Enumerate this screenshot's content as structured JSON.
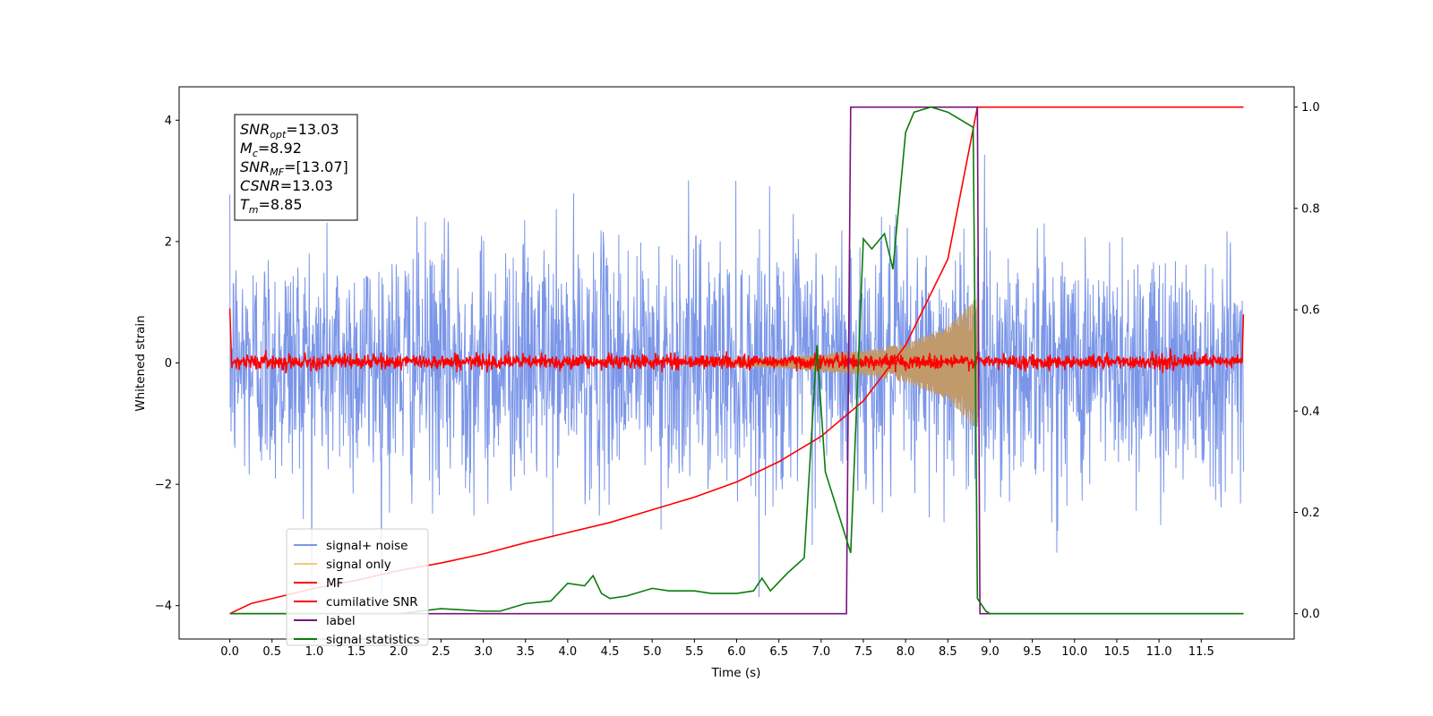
{
  "chart_data": {
    "type": "line",
    "xlabel": "Time (s)",
    "ylabel": "Whitened strain",
    "xlim": [
      -0.6,
      12.6
    ],
    "ylim_left": [
      -4.55,
      4.55
    ],
    "ylim_right": [
      -0.05,
      1.04
    ],
    "x_ticks": [
      "0.0",
      "0.5",
      "1.0",
      "1.5",
      "2.0",
      "2.5",
      "3.0",
      "3.5",
      "4.0",
      "4.5",
      "5.0",
      "5.5",
      "6.0",
      "6.5",
      "7.0",
      "7.5",
      "8.0",
      "8.5",
      "9.0",
      "9.5",
      "10.0",
      "10.5",
      "11.0",
      "11.5"
    ],
    "y_ticks_left": [
      "4",
      "2",
      "0",
      "−2",
      "−4"
    ],
    "y_ticks_right": [
      "1.0",
      "0.8",
      "0.6",
      "0.4",
      "0.2",
      "0.0"
    ],
    "grid": false,
    "legend_position": "lower-left",
    "info_box": {
      "lines": [
        {
          "base": "SNR",
          "sub": "opt",
          "value": "=13.03"
        },
        {
          "base": "M",
          "sub": "c",
          "value": "=8.92"
        },
        {
          "base": "SNR",
          "sub": "MF",
          "value": "=[13.07]"
        },
        {
          "base": "CSNR",
          "sub": "",
          "value": "=13.03"
        },
        {
          "base": "T",
          "sub": "m",
          "value": "=8.85"
        }
      ]
    },
    "series": [
      {
        "name": "signal+ noise",
        "color": "#7b96e8",
        "axis": "left",
        "kind": "noise",
        "x_range": [
          0,
          12
        ],
        "amplitude_approx": 3.5
      },
      {
        "name": "signal only",
        "color": "#f5c97a",
        "axis": "left",
        "kind": "chirp",
        "envelope": {
          "x": [
            5.5,
            6.5,
            7.5,
            8.0,
            8.5,
            8.8,
            8.85
          ],
          "y": [
            0.03,
            0.08,
            0.2,
            0.32,
            0.6,
            1.05,
            1.05
          ]
        }
      },
      {
        "name": "MF",
        "color": "#ff0000",
        "axis": "left",
        "kind": "noise",
        "x_range": [
          0,
          12
        ],
        "amplitude_approx": 0.15
      },
      {
        "name": "cumilative SNR",
        "color": "#ff0000",
        "axis": "right",
        "x": [
          0,
          0.25,
          0.5,
          1,
          1.5,
          2,
          2.5,
          3,
          3.5,
          4,
          4.5,
          5,
          5.5,
          6,
          6.5,
          7,
          7.5,
          8,
          8.5,
          8.85,
          9,
          10,
          11,
          12
        ],
        "y": [
          0,
          0.02,
          0.03,
          0.05,
          0.066,
          0.085,
          0.1,
          0.118,
          0.14,
          0.16,
          0.18,
          0.205,
          0.23,
          0.26,
          0.3,
          0.35,
          0.42,
          0.53,
          0.7,
          1.0,
          1.0,
          1.0,
          1.0,
          1.0
        ]
      },
      {
        "name": "label",
        "color": "#7b117f",
        "axis": "right",
        "x": [
          0,
          7.3,
          7.35,
          8.85,
          8.88,
          12
        ],
        "y": [
          0,
          0,
          1,
          1,
          0,
          0
        ]
      },
      {
        "name": "signal statistics",
        "color": "#0a7d0a",
        "axis": "right",
        "x": [
          0,
          2,
          2.5,
          3,
          3.2,
          3.5,
          3.8,
          4,
          4.2,
          4.3,
          4.4,
          4.5,
          4.7,
          5,
          5.2,
          5.5,
          5.7,
          6,
          6.2,
          6.3,
          6.4,
          6.6,
          6.8,
          6.95,
          7.05,
          7.2,
          7.35,
          7.5,
          7.6,
          7.75,
          7.85,
          8,
          8.1,
          8.2,
          8.3,
          8.5,
          8.6,
          8.7,
          8.8,
          8.85,
          8.95,
          9,
          10,
          11,
          12
        ],
        "y": [
          0,
          0,
          0.01,
          0.005,
          0.005,
          0.02,
          0.025,
          0.06,
          0.055,
          0.075,
          0.04,
          0.03,
          0.035,
          0.05,
          0.045,
          0.045,
          0.04,
          0.04,
          0.045,
          0.07,
          0.045,
          0.08,
          0.11,
          0.53,
          0.28,
          0.2,
          0.12,
          0.74,
          0.72,
          0.75,
          0.68,
          0.95,
          0.99,
          0.995,
          1.0,
          0.99,
          0.98,
          0.97,
          0.96,
          0.03,
          0.005,
          0,
          0,
          0,
          0
        ]
      }
    ]
  }
}
